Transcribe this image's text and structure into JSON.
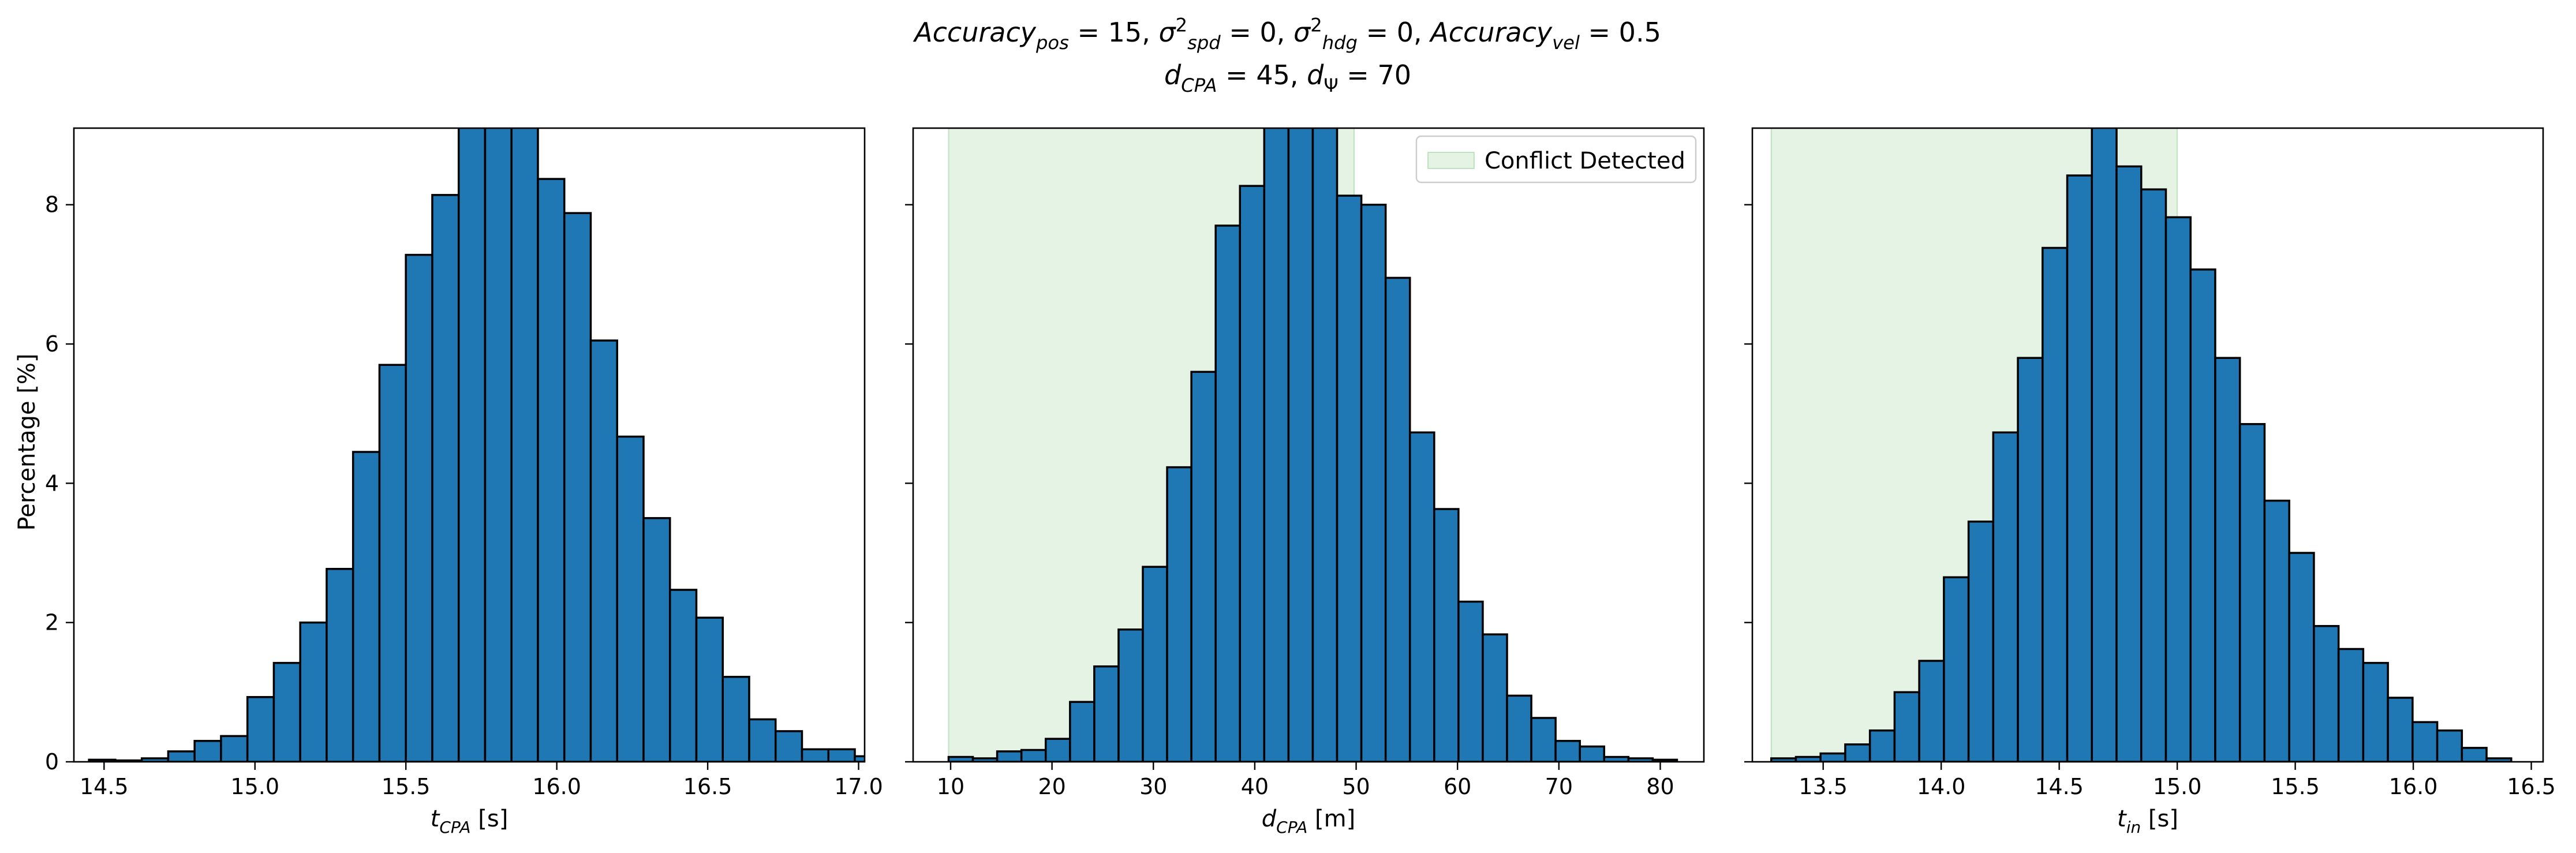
{
  "figure": {
    "title_line1": {
      "parts": [
        {
          "t": "Accuracy",
          "i": true
        },
        {
          "t": "pos",
          "i": true,
          "sub": true
        },
        {
          "t": " = 15, "
        },
        {
          "t": "σ",
          "i": true
        },
        {
          "t": "2",
          "sup": true
        },
        {
          "t": "spd",
          "i": true,
          "sub": true
        },
        {
          "t": " = 0, "
        },
        {
          "t": "σ",
          "i": true
        },
        {
          "t": "2",
          "sup": true
        },
        {
          "t": "hdg",
          "i": true,
          "sub": true
        },
        {
          "t": " = 0, "
        },
        {
          "t": "Accuracy",
          "i": true
        },
        {
          "t": "vel",
          "i": true,
          "sub": true
        },
        {
          "t": " = 0.5"
        }
      ]
    },
    "title_line2": {
      "parts": [
        {
          "t": "d",
          "i": true
        },
        {
          "t": "CPA",
          "i": true,
          "sub": true
        },
        {
          "t": " = 45, "
        },
        {
          "t": "d",
          "i": true
        },
        {
          "t": "Ψ",
          "sub": true
        },
        {
          "t": " = 70"
        }
      ]
    },
    "ylabel": "Percentage [%]",
    "legend_label": "Conflict Detected"
  },
  "colors": {
    "bar_fill": "#1f77b4",
    "bar_edge": "#000000",
    "shade": "#2ca02c"
  },
  "chart_data": [
    {
      "type": "bar",
      "panel": "left",
      "xlabel": {
        "parts": [
          {
            "t": "t",
            "i": true
          },
          {
            "t": "CPA",
            "i": true,
            "sub": true
          },
          {
            "t": " [s]"
          }
        ]
      },
      "xlim": [
        14.4,
        17.02
      ],
      "ylim": [
        0,
        9.1
      ],
      "xticks": [
        14.5,
        15.0,
        15.5,
        16.0,
        16.5,
        17.0
      ],
      "xtick_labels": [
        "14.5",
        "15.0",
        "15.5",
        "16.0",
        "16.5",
        "17.0"
      ],
      "yticks": [
        0,
        2,
        4,
        6,
        8
      ],
      "ytick_labels": [
        "0",
        "2",
        "4",
        "6",
        "8"
      ],
      "bin_start": 14.45,
      "bin_width": 0.0875,
      "values": [
        0.03,
        0.02,
        0.05,
        0.15,
        0.3,
        0.37,
        0.93,
        1.42,
        2.0,
        2.77,
        4.45,
        5.7,
        7.28,
        8.14,
        9.6,
        10.0,
        9.8,
        8.37,
        7.88,
        6.05,
        4.67,
        3.5,
        2.47,
        2.07,
        1.22,
        0.61,
        0.44,
        0.18,
        0.18,
        0.08
      ],
      "shaded_region": null,
      "legend": null
    },
    {
      "type": "bar",
      "panel": "middle",
      "xlabel": {
        "parts": [
          {
            "t": "d",
            "i": true
          },
          {
            "t": "CPA",
            "i": true,
            "sub": true
          },
          {
            "t": " [m]"
          }
        ]
      },
      "xlim": [
        6.3,
        84.3
      ],
      "ylim": [
        0,
        9.1
      ],
      "xticks": [
        10,
        20,
        30,
        40,
        50,
        60,
        70,
        80
      ],
      "xtick_labels": [
        "10",
        "20",
        "30",
        "40",
        "50",
        "60",
        "70",
        "80"
      ],
      "yticks": [
        0,
        2,
        4,
        6,
        8
      ],
      "ytick_labels": [
        "",
        "",
        "",
        "",
        ""
      ],
      "bin_start": 9.8,
      "bin_width": 2.395,
      "values": [
        0.07,
        0.05,
        0.15,
        0.17,
        0.33,
        0.86,
        1.37,
        1.9,
        2.8,
        4.23,
        5.6,
        7.7,
        8.27,
        9.6,
        10.0,
        9.9,
        8.13,
        8.0,
        6.95,
        4.73,
        3.63,
        2.3,
        1.83,
        0.95,
        0.63,
        0.3,
        0.22,
        0.07,
        0.05,
        0.03
      ],
      "shaded_region": [
        9.8,
        49.8
      ],
      "legend": {
        "label": "Conflict Detected",
        "placement": "upper-right"
      }
    },
    {
      "type": "bar",
      "panel": "right",
      "xlabel": {
        "parts": [
          {
            "t": "t",
            "i": true
          },
          {
            "t": "in",
            "i": true,
            "sub": true
          },
          {
            "t": " [s]"
          }
        ]
      },
      "xlim": [
        13.2,
        16.55
      ],
      "ylim": [
        0,
        9.1
      ],
      "xticks": [
        13.5,
        14.0,
        14.5,
        15.0,
        15.5,
        16.0,
        16.5
      ],
      "xtick_labels": [
        "13.5",
        "14.0",
        "14.5",
        "15.0",
        "15.5",
        "16.0",
        "16.5"
      ],
      "yticks": [
        0,
        2,
        4,
        6,
        8
      ],
      "ytick_labels": [
        "",
        "",
        "",
        "",
        ""
      ],
      "bin_start": 13.28,
      "bin_width": 0.1045,
      "values": [
        0.05,
        0.07,
        0.12,
        0.25,
        0.45,
        1.0,
        1.45,
        2.65,
        3.45,
        4.73,
        5.8,
        7.38,
        8.42,
        10.0,
        8.55,
        8.22,
        7.82,
        7.07,
        5.8,
        4.85,
        3.75,
        3.0,
        1.95,
        1.62,
        1.42,
        0.92,
        0.57,
        0.45,
        0.2,
        0.05
      ],
      "shaded_region": [
        13.28,
        15.0
      ],
      "legend": null
    }
  ]
}
